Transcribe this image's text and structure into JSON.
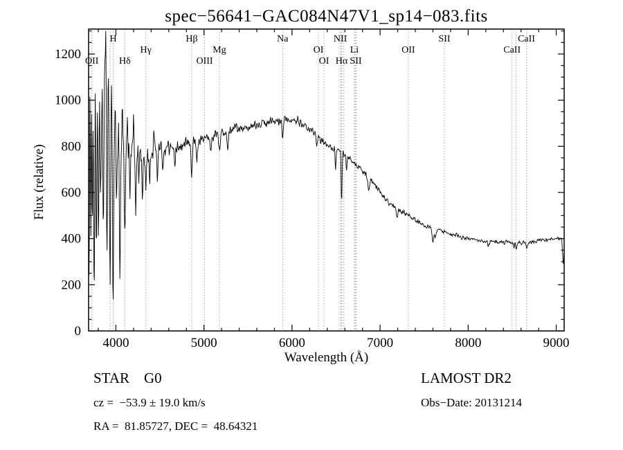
{
  "chart_data": {
    "type": "line",
    "title": "spec−56641−GAC084N47V1_sp14−083.fits",
    "xlabel": "Wavelength (Å)",
    "ylabel": "Flux (relative)",
    "xlim": [
      3690,
      9090
    ],
    "ylim": [
      0,
      1308
    ],
    "x_ticks": [
      4000,
      5000,
      6000,
      7000,
      8000,
      9000
    ],
    "y_ticks": [
      0,
      200,
      400,
      600,
      800,
      1000,
      1200
    ],
    "x_minor_step": 200,
    "y_minor_step": 50,
    "grid": false,
    "line_color": "#000000",
    "marker_color": "#909090",
    "spectral_lines": [
      {
        "label": "OII",
        "wavelength": 3727,
        "row": 3
      },
      {
        "label": "H",
        "wavelength": 3970,
        "row": 1
      },
      {
        "label": "Hδ",
        "wavelength": 4102,
        "row": 3
      },
      {
        "label": "Hγ",
        "wavelength": 4340,
        "row": 2
      },
      {
        "label": "Hβ",
        "wavelength": 4861,
        "row": 1
      },
      {
        "label": "OIII",
        "wavelength": 5007,
        "row": 3
      },
      {
        "label": "Mg",
        "wavelength": 5175,
        "row": 2
      },
      {
        "label": "Na",
        "wavelength": 5893,
        "row": 1
      },
      {
        "label": "OI",
        "wavelength": 6300,
        "row": 2
      },
      {
        "label": "OI",
        "wavelength": 6363,
        "row": 3
      },
      {
        "label": "NII",
        "wavelength": 6548,
        "row": 1
      },
      {
        "label": "Hα",
        "wavelength": 6563,
        "row": 3
      },
      {
        "label": "Li",
        "wavelength": 6708,
        "row": 2
      },
      {
        "label": "SII",
        "wavelength": 6724,
        "row": 3
      },
      {
        "label": "OII",
        "wavelength": 7320,
        "row": 2
      },
      {
        "label": "SII",
        "wavelength": 7730,
        "row": 1
      },
      {
        "label": "CaII",
        "wavelength": 8498,
        "row": 2
      },
      {
        "label": "CaII",
        "wavelength": 8662,
        "row": 1
      }
    ],
    "dotted_line_wavelengths": [
      3727,
      3934,
      3970,
      4102,
      4340,
      4861,
      5007,
      5175,
      5893,
      6300,
      6363,
      6548,
      6563,
      6584,
      6708,
      6717,
      6731,
      7320,
      7730,
      8498,
      8542,
      8662
    ],
    "spectrum": {
      "seed": 20131214,
      "sample_step": 5,
      "continuum": [
        [
          3690,
          560
        ],
        [
          3720,
          640
        ],
        [
          3760,
          720
        ],
        [
          3800,
          780
        ],
        [
          3850,
          820
        ],
        [
          3900,
          840
        ],
        [
          3950,
          830
        ],
        [
          4000,
          820
        ],
        [
          4060,
          800
        ],
        [
          4120,
          795
        ],
        [
          4200,
          785
        ],
        [
          4300,
          770
        ],
        [
          4400,
          780
        ],
        [
          4500,
          790
        ],
        [
          4600,
          795
        ],
        [
          4700,
          800
        ],
        [
          4800,
          805
        ],
        [
          4900,
          815
        ],
        [
          5000,
          830
        ],
        [
          5100,
          845
        ],
        [
          5200,
          860
        ],
        [
          5300,
          870
        ],
        [
          5400,
          880
        ],
        [
          5500,
          885
        ],
        [
          5600,
          890
        ],
        [
          5700,
          900
        ],
        [
          5800,
          910
        ],
        [
          5900,
          912
        ],
        [
          6000,
          915
        ],
        [
          6050,
          912
        ],
        [
          6100,
          900
        ],
        [
          6150,
          888
        ],
        [
          6200,
          872
        ],
        [
          6250,
          855
        ],
        [
          6300,
          838
        ],
        [
          6350,
          820
        ],
        [
          6400,
          805
        ],
        [
          6450,
          795
        ],
        [
          6500,
          788
        ],
        [
          6550,
          778
        ],
        [
          6600,
          765
        ],
        [
          6650,
          748
        ],
        [
          6700,
          730
        ],
        [
          6750,
          712
        ],
        [
          6800,
          695
        ],
        [
          6850,
          675
        ],
        [
          6900,
          650
        ],
        [
          6950,
          625
        ],
        [
          7000,
          600
        ],
        [
          7050,
          575
        ],
        [
          7100,
          555
        ],
        [
          7150,
          540
        ],
        [
          7200,
          528
        ],
        [
          7250,
          515
        ],
        [
          7300,
          505
        ],
        [
          7350,
          492
        ],
        [
          7400,
          480
        ],
        [
          7450,
          468
        ],
        [
          7500,
          455
        ],
        [
          7550,
          448
        ],
        [
          7600,
          442
        ],
        [
          7650,
          438
        ],
        [
          7700,
          436
        ],
        [
          7750,
          428
        ],
        [
          7800,
          420
        ],
        [
          7900,
          408
        ],
        [
          8000,
          400
        ],
        [
          8100,
          394
        ],
        [
          8200,
          390
        ],
        [
          8300,
          387
        ],
        [
          8400,
          385
        ],
        [
          8500,
          382
        ],
        [
          8600,
          380
        ],
        [
          8700,
          384
        ],
        [
          8800,
          390
        ],
        [
          8900,
          396
        ],
        [
          9000,
          400
        ],
        [
          9090,
          402
        ]
      ],
      "noise_amplitude": [
        [
          3690,
          260
        ],
        [
          3750,
          230
        ],
        [
          3800,
          200
        ],
        [
          3850,
          170
        ],
        [
          3900,
          160
        ],
        [
          3950,
          150
        ],
        [
          4000,
          120
        ],
        [
          4100,
          100
        ],
        [
          4200,
          90
        ],
        [
          4300,
          80
        ],
        [
          4400,
          65
        ],
        [
          4600,
          50
        ],
        [
          4800,
          42
        ],
        [
          5000,
          36
        ],
        [
          5200,
          32
        ],
        [
          5400,
          30
        ],
        [
          5600,
          28
        ],
        [
          5800,
          26
        ],
        [
          6000,
          24
        ],
        [
          6300,
          22
        ],
        [
          6600,
          20
        ],
        [
          6900,
          18
        ],
        [
          7200,
          15
        ],
        [
          7500,
          13
        ],
        [
          7800,
          12
        ],
        [
          8200,
          12
        ],
        [
          8600,
          12
        ],
        [
          9000,
          12
        ]
      ],
      "features": [
        [
          3697,
          -430,
          5
        ],
        [
          3706,
          520,
          4
        ],
        [
          3715,
          -360,
          4
        ],
        [
          3724,
          330,
          4
        ],
        [
          3733,
          -280,
          5
        ],
        [
          3742,
          260,
          4
        ],
        [
          3755,
          -500,
          5
        ],
        [
          3766,
          300,
          4
        ],
        [
          3778,
          -260,
          5
        ],
        [
          3790,
          240,
          4
        ],
        [
          3802,
          -340,
          5
        ],
        [
          3815,
          280,
          4
        ],
        [
          3830,
          -240,
          5
        ],
        [
          3845,
          300,
          4
        ],
        [
          3858,
          -420,
          5
        ],
        [
          3872,
          360,
          4
        ],
        [
          3886,
          470,
          5
        ],
        [
          3898,
          -640,
          5
        ],
        [
          3912,
          300,
          4
        ],
        [
          3934,
          -680,
          6
        ],
        [
          3950,
          250,
          4
        ],
        [
          3969,
          -750,
          6
        ],
        [
          3990,
          200,
          4
        ],
        [
          4010,
          -250,
          5
        ],
        [
          4030,
          180,
          4
        ],
        [
          4046,
          -600,
          6
        ],
        [
          4070,
          160,
          4
        ],
        [
          4101,
          -360,
          6
        ],
        [
          4130,
          140,
          4
        ],
        [
          4160,
          -200,
          5
        ],
        [
          4200,
          150,
          4
        ],
        [
          4226,
          -300,
          6
        ],
        [
          4260,
          -150,
          5
        ],
        [
          4300,
          -180,
          6
        ],
        [
          4340,
          -200,
          6
        ],
        [
          4383,
          -160,
          6
        ],
        [
          4430,
          120,
          5
        ],
        [
          4472,
          -130,
          6
        ],
        [
          4530,
          -90,
          6
        ],
        [
          4668,
          -80,
          6
        ],
        [
          4861,
          -150,
          6
        ],
        [
          4920,
          -70,
          6
        ],
        [
          5080,
          -70,
          6
        ],
        [
          5175,
          -80,
          8
        ],
        [
          5270,
          -70,
          7
        ],
        [
          5893,
          -70,
          6
        ],
        [
          6280,
          -60,
          5
        ],
        [
          6495,
          -80,
          5
        ],
        [
          6563,
          -230,
          5
        ],
        [
          6620,
          -60,
          5
        ],
        [
          6870,
          -60,
          8
        ],
        [
          7190,
          -40,
          8
        ],
        [
          7600,
          -55,
          10
        ],
        [
          7630,
          -30,
          8
        ],
        [
          8230,
          -25,
          8
        ],
        [
          8520,
          -25,
          6
        ],
        [
          8545,
          -20,
          6
        ],
        [
          8665,
          -25,
          6
        ],
        [
          9080,
          -110,
          8
        ]
      ]
    }
  },
  "annotations": {
    "class_line": "STAR    G0",
    "survey": "LAMOST DR2",
    "cz_line": "cz =  −53.9 ± 19.0 km/s",
    "obs_date_line": "Obs−Date: 20131214",
    "ra_dec_line": "RA =  81.85727, DEC =  48.64321"
  }
}
